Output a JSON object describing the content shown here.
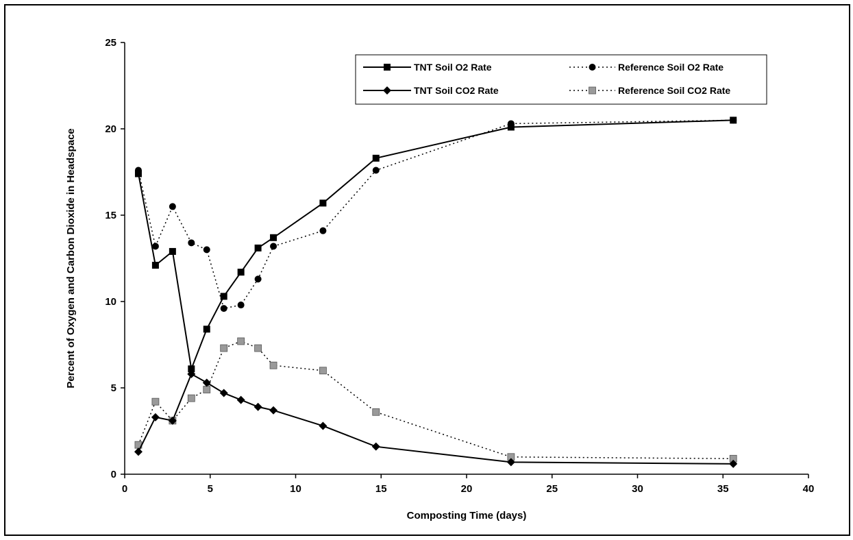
{
  "chart_data": {
    "type": "line",
    "title": "",
    "xlabel": "Composting Time (days)",
    "ylabel": "Percent of Oxygen and Carbon Dioxide in Headspace",
    "xlim": [
      0,
      40
    ],
    "ylim": [
      0,
      25
    ],
    "x_ticks": [
      "0",
      "5",
      "10",
      "15",
      "20",
      "25",
      "30",
      "35",
      "40"
    ],
    "y_ticks": [
      "0",
      "5",
      "10",
      "15",
      "20",
      "25"
    ],
    "grid": false,
    "legend_position": "top-right",
    "series": [
      {
        "name": "TNT Soil O2 Rate",
        "line": "solid",
        "marker": "square",
        "color": "#000000",
        "points": [
          [
            0.8,
            17.4
          ],
          [
            1.8,
            12.1
          ],
          [
            2.8,
            12.9
          ],
          [
            3.9,
            6.1
          ],
          [
            4.8,
            8.4
          ],
          [
            5.8,
            10.3
          ],
          [
            6.8,
            11.7
          ],
          [
            7.8,
            13.1
          ],
          [
            8.7,
            13.7
          ],
          [
            11.6,
            15.7
          ],
          [
            14.7,
            18.3
          ],
          [
            22.6,
            20.1
          ],
          [
            35.6,
            20.5
          ]
        ]
      },
      {
        "name": "TNT Soil CO2 Rate",
        "line": "solid",
        "marker": "diamond",
        "color": "#000000",
        "points": [
          [
            0.8,
            1.3
          ],
          [
            1.8,
            3.3
          ],
          [
            2.8,
            3.1
          ],
          [
            3.9,
            5.8
          ],
          [
            4.8,
            5.3
          ],
          [
            5.8,
            4.7
          ],
          [
            6.8,
            4.3
          ],
          [
            7.8,
            3.9
          ],
          [
            8.7,
            3.7
          ],
          [
            11.6,
            2.8
          ],
          [
            14.7,
            1.6
          ],
          [
            22.6,
            0.7
          ],
          [
            35.6,
            0.6
          ]
        ]
      },
      {
        "name": "Reference Soil O2 Rate",
        "line": "dotted",
        "marker": "circle",
        "color": "#000000",
        "points": [
          [
            0.8,
            17.6
          ],
          [
            1.8,
            13.2
          ],
          [
            2.8,
            15.5
          ],
          [
            3.9,
            13.4
          ],
          [
            4.8,
            13.0
          ],
          [
            5.8,
            9.6
          ],
          [
            6.8,
            9.8
          ],
          [
            7.8,
            11.3
          ],
          [
            8.7,
            13.2
          ],
          [
            11.6,
            14.1
          ],
          [
            14.7,
            17.6
          ],
          [
            22.6,
            20.3
          ],
          [
            35.6,
            20.5
          ]
        ]
      },
      {
        "name": "Reference Soil CO2 Rate",
        "line": "dotted",
        "marker": "square-gray",
        "color": "#9a9a9a",
        "points": [
          [
            0.8,
            1.7
          ],
          [
            1.8,
            4.2
          ],
          [
            2.8,
            3.1
          ],
          [
            3.9,
            4.4
          ],
          [
            4.8,
            4.9
          ],
          [
            5.8,
            7.3
          ],
          [
            6.8,
            7.7
          ],
          [
            7.8,
            7.3
          ],
          [
            8.7,
            6.3
          ],
          [
            11.6,
            6.0
          ],
          [
            14.7,
            3.6
          ],
          [
            22.6,
            1.0
          ],
          [
            35.6,
            0.9
          ]
        ]
      }
    ]
  }
}
